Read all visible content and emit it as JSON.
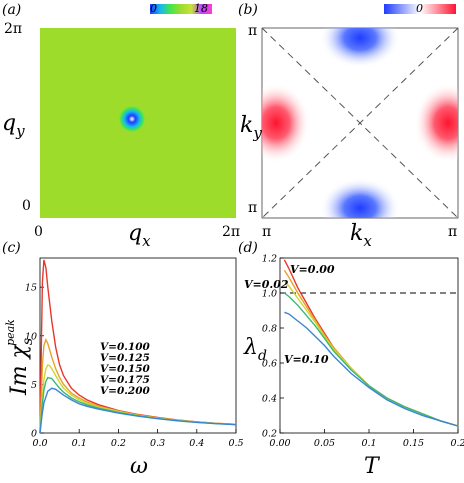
{
  "panels": {
    "a": {
      "label": "(a)",
      "colorbar": {
        "min_label": "0",
        "max_label": "18",
        "colors": [
          "#1a3cff",
          "#17b8f0",
          "#46e64a",
          "#9edc2c",
          "#c8e23a",
          "#b445ff",
          "#ff3cd0"
        ]
      },
      "background_color": "#9edc2c",
      "y_axis": {
        "label": "q",
        "sub": "y",
        "top_tick": "2π",
        "bottom_tick": "0"
      },
      "x_axis": {
        "label": "q",
        "sub": "x",
        "left_tick": "0",
        "right_tick": "2π"
      }
    },
    "b": {
      "label": "(b)",
      "colorbar": {
        "mid_label": "0",
        "colors": [
          "#1f3cff",
          "#ffffff",
          "#ff1430"
        ]
      },
      "y_axis": {
        "label": "k",
        "sub": "y",
        "top_tick": "π",
        "bottom_tick": "π"
      },
      "x_axis": {
        "label": "k",
        "sub": "x",
        "left_tick": "π",
        "right_tick": "π"
      }
    }
  },
  "chart_data": [
    {
      "panel": "c",
      "type": "line",
      "label": "(c)",
      "ylabel_main": "Im χ",
      "ylabel_sub": "s",
      "ylabel_sup": "peak",
      "xlabel": "ω",
      "xlim": [
        0,
        0.5
      ],
      "ylim": [
        0,
        18
      ],
      "xticks": [
        0.0,
        0.1,
        0.2,
        0.3,
        0.4,
        0.5
      ],
      "xtick_labels": [
        "0.0",
        "0.1",
        "0.2",
        "0.3",
        "0.4",
        "0.5"
      ],
      "yticks": [
        0,
        5,
        10,
        15
      ],
      "ytick_labels": [
        "0",
        "5",
        "10",
        "15"
      ],
      "legend": [
        "V=0.100",
        "V=0.125",
        "V=0.150",
        "V=0.175",
        "V=0.200"
      ],
      "series": [
        {
          "color": "#e8362b",
          "x": [
            0,
            0.003,
            0.006,
            0.01,
            0.015,
            0.02,
            0.03,
            0.04,
            0.05,
            0.06,
            0.08,
            0.1,
            0.12,
            0.15,
            0.2,
            0.25,
            0.3,
            0.35,
            0.4,
            0.45,
            0.5
          ],
          "values": [
            0,
            8.0,
            15.5,
            17.8,
            17.0,
            15.0,
            11.5,
            8.8,
            7.0,
            5.9,
            4.6,
            3.9,
            3.4,
            2.9,
            2.3,
            1.9,
            1.6,
            1.35,
            1.15,
            1.0,
            0.9
          ]
        },
        {
          "color": "#e8a02b",
          "x": [
            0,
            0.003,
            0.006,
            0.01,
            0.015,
            0.02,
            0.03,
            0.04,
            0.05,
            0.06,
            0.08,
            0.1,
            0.12,
            0.15,
            0.2,
            0.25,
            0.3,
            0.35,
            0.4,
            0.45,
            0.5
          ],
          "values": [
            0,
            3.5,
            7.0,
            9.0,
            9.6,
            9.2,
            7.8,
            6.6,
            5.7,
            5.0,
            4.1,
            3.6,
            3.2,
            2.75,
            2.25,
            1.85,
            1.55,
            1.32,
            1.13,
            1.0,
            0.88
          ]
        },
        {
          "color": "#cfd630",
          "x": [
            0,
            0.005,
            0.01,
            0.015,
            0.02,
            0.025,
            0.03,
            0.04,
            0.05,
            0.06,
            0.08,
            0.1,
            0.12,
            0.15,
            0.2,
            0.25,
            0.3,
            0.35,
            0.4,
            0.45,
            0.5
          ],
          "values": [
            0,
            3.2,
            5.5,
            6.6,
            7.0,
            6.9,
            6.6,
            5.9,
            5.2,
            4.6,
            3.9,
            3.4,
            3.05,
            2.65,
            2.2,
            1.82,
            1.53,
            1.3,
            1.12,
            0.98,
            0.87
          ]
        },
        {
          "color": "#3cb878",
          "x": [
            0,
            0.005,
            0.01,
            0.015,
            0.02,
            0.03,
            0.04,
            0.05,
            0.06,
            0.08,
            0.1,
            0.12,
            0.15,
            0.2,
            0.25,
            0.3,
            0.35,
            0.4,
            0.45,
            0.5
          ],
          "values": [
            0,
            2.6,
            4.4,
            5.3,
            5.7,
            5.6,
            5.1,
            4.6,
            4.2,
            3.6,
            3.2,
            2.9,
            2.55,
            2.12,
            1.78,
            1.5,
            1.28,
            1.1,
            0.97,
            0.86
          ]
        },
        {
          "color": "#3a86d6",
          "x": [
            0,
            0.005,
            0.01,
            0.02,
            0.03,
            0.04,
            0.05,
            0.06,
            0.08,
            0.1,
            0.12,
            0.15,
            0.2,
            0.25,
            0.3,
            0.35,
            0.4,
            0.45,
            0.5
          ],
          "values": [
            0,
            1.8,
            3.1,
            4.3,
            4.6,
            4.5,
            4.2,
            3.9,
            3.4,
            3.0,
            2.75,
            2.45,
            2.05,
            1.73,
            1.47,
            1.26,
            1.09,
            0.96,
            0.85
          ]
        }
      ]
    },
    {
      "panel": "d",
      "type": "line",
      "label": "(d)",
      "ylabel_main": "λ",
      "ylabel_sub": "d",
      "xlabel": "T",
      "xlim": [
        0,
        0.2
      ],
      "ylim": [
        0.2,
        1.2
      ],
      "xticks": [
        0.0,
        0.05,
        0.1,
        0.15,
        0.2
      ],
      "xtick_labels": [
        "0.00",
        "0.05",
        "0.1",
        "0.15",
        "0.2"
      ],
      "yticks": [
        0.2,
        0.4,
        0.6,
        0.8,
        1.0,
        1.2
      ],
      "ytick_labels": [
        "0.2",
        "0.4",
        "0.6",
        "0.8",
        "1.0",
        "1.2"
      ],
      "reference_line": 1.0,
      "annotations": [
        "V=0.00",
        "V=0.02",
        "V=0.10"
      ],
      "series": [
        {
          "color": "#e8362b",
          "x": [
            0.005,
            0.01,
            0.02,
            0.03,
            0.04,
            0.05,
            0.06,
            0.08,
            0.1,
            0.12,
            0.14,
            0.16,
            0.18,
            0.2
          ],
          "values": [
            1.19,
            1.14,
            1.03,
            0.94,
            0.85,
            0.77,
            0.69,
            0.57,
            0.47,
            0.4,
            0.35,
            0.31,
            0.27,
            0.24
          ]
        },
        {
          "color": "#e8a02b",
          "x": [
            0.005,
            0.01,
            0.02,
            0.03,
            0.04,
            0.05,
            0.06,
            0.08,
            0.1,
            0.12,
            0.14,
            0.16,
            0.18,
            0.2
          ],
          "values": [
            1.13,
            1.09,
            1.0,
            0.92,
            0.84,
            0.76,
            0.69,
            0.57,
            0.47,
            0.4,
            0.35,
            0.31,
            0.27,
            0.24
          ]
        },
        {
          "color": "#cfd630",
          "x": [
            0.005,
            0.01,
            0.02,
            0.03,
            0.04,
            0.05,
            0.06,
            0.08,
            0.1,
            0.12,
            0.14,
            0.16,
            0.18,
            0.2
          ],
          "values": [
            1.07,
            1.04,
            0.97,
            0.9,
            0.83,
            0.75,
            0.68,
            0.57,
            0.47,
            0.4,
            0.35,
            0.31,
            0.27,
            0.24
          ]
        },
        {
          "color": "#3cb878",
          "x": [
            0.005,
            0.01,
            0.02,
            0.03,
            0.04,
            0.05,
            0.06,
            0.08,
            0.1,
            0.12,
            0.14,
            0.16,
            0.18,
            0.2
          ],
          "values": [
            1.0,
            0.98,
            0.93,
            0.87,
            0.81,
            0.74,
            0.67,
            0.56,
            0.47,
            0.4,
            0.35,
            0.31,
            0.27,
            0.24
          ]
        },
        {
          "color": "#3a86d6",
          "x": [
            0.005,
            0.01,
            0.02,
            0.03,
            0.04,
            0.05,
            0.06,
            0.08,
            0.1,
            0.12,
            0.14,
            0.16,
            0.18,
            0.2
          ],
          "values": [
            0.89,
            0.88,
            0.84,
            0.8,
            0.75,
            0.7,
            0.64,
            0.54,
            0.46,
            0.39,
            0.34,
            0.3,
            0.27,
            0.24
          ]
        }
      ]
    }
  ]
}
